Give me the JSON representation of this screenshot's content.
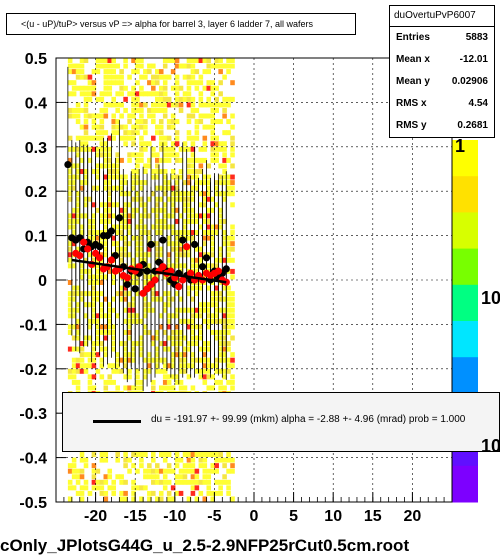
{
  "chart_data": {
    "type": "scatter",
    "title": "<(u - uP)/tuP> versus   vP => alpha for barrel 3, layer 6 ladder 7, all  wafers",
    "xlim": [
      -25,
      25
    ],
    "ylim": [
      -0.5,
      0.5
    ],
    "xticks": [
      "-20",
      "-15",
      "-10",
      "-5",
      "0",
      "5",
      "10",
      "15",
      "20"
    ],
    "yticks": [
      "0.5",
      "0.4",
      "0.3",
      "0.2",
      "0.1",
      "0",
      "-0.1",
      "-0.2",
      "-0.3",
      "-0.4",
      "-0.5"
    ],
    "series": [
      {
        "color": "#000000",
        "points": [
          [
            -23.5,
            0.26
          ],
          [
            -23.0,
            0.095
          ],
          [
            -22.5,
            0.09
          ],
          [
            -22.0,
            0.095
          ],
          [
            -21.5,
            0.07
          ],
          [
            -21.0,
            0.085
          ],
          [
            -20.5,
            0.075
          ],
          [
            -20.0,
            0.08
          ],
          [
            -19.5,
            0.075
          ],
          [
            -19.0,
            0.1
          ],
          [
            -18.5,
            0.1
          ],
          [
            -18.0,
            0.11
          ],
          [
            -17.5,
            0.055
          ],
          [
            -17.0,
            0.14
          ],
          [
            -16.5,
            0.03
          ],
          [
            -16.0,
            -0.01
          ],
          [
            -15.5,
            0.02
          ],
          [
            -15.0,
            -0.02
          ],
          [
            -14.5,
            0.015
          ],
          [
            -14.0,
            0.035
          ],
          [
            -13.5,
            0.02
          ],
          [
            -13.0,
            0.08
          ],
          [
            -12.5,
            0.02
          ],
          [
            -12.0,
            0.04
          ],
          [
            -11.5,
            0.09
          ],
          [
            -11.0,
            0.02
          ],
          [
            -10.5,
            0.0
          ],
          [
            -10.0,
            -0.01
          ],
          [
            -9.5,
            0.015
          ],
          [
            -9.0,
            0.09
          ],
          [
            -8.5,
            0.01
          ],
          [
            -8.0,
            0.0
          ],
          [
            -7.5,
            0.08
          ],
          [
            -7.0,
            0.01
          ],
          [
            -6.5,
            0.03
          ],
          [
            -6.0,
            0.05
          ],
          [
            -5.5,
            0.0
          ],
          [
            -5.0,
            0.02
          ],
          [
            -4.5,
            0.005
          ],
          [
            -4.0,
            0.015
          ],
          [
            -3.5,
            0.025
          ]
        ]
      },
      {
        "color": "#ff0000",
        "points": [
          [
            -22.5,
            0.06
          ],
          [
            -22.0,
            0.055
          ],
          [
            -21.5,
            0.085
          ],
          [
            -21.0,
            0.07
          ],
          [
            -20.5,
            0.035
          ],
          [
            -20.0,
            0.06
          ],
          [
            -19.5,
            0.05
          ],
          [
            -19.0,
            0.025
          ],
          [
            -18.5,
            0.03
          ],
          [
            -18.0,
            0.045
          ],
          [
            -17.5,
            0.02
          ],
          [
            -17.0,
            0.025
          ],
          [
            -16.5,
            0.01
          ],
          [
            -16.0,
            0.005
          ],
          [
            -15.5,
            0.025
          ],
          [
            -15.0,
            0.02
          ],
          [
            -14.5,
            0.03
          ],
          [
            -14.0,
            -0.03
          ],
          [
            -13.5,
            -0.02
          ],
          [
            -13.0,
            -0.01
          ],
          [
            -12.5,
            0.0
          ],
          [
            -12.0,
            0.02
          ],
          [
            -11.5,
            0.03
          ],
          [
            -11.0,
            0.015
          ],
          [
            -10.5,
            0.02
          ],
          [
            -10.0,
            0.005
          ],
          [
            -9.5,
            -0.015
          ],
          [
            -9.0,
            0.0
          ],
          [
            -8.5,
            0.075
          ],
          [
            -8.0,
            0.015
          ],
          [
            -7.5,
            0.0
          ],
          [
            -7.0,
            0.01
          ],
          [
            -6.5,
            0.0
          ],
          [
            -6.0,
            0.015
          ],
          [
            -5.5,
            0.01
          ],
          [
            -5.0,
            0.015
          ],
          [
            -4.5,
            0.02
          ],
          [
            -4.0,
            0.0
          ],
          [
            -3.5,
            -0.005
          ]
        ]
      }
    ],
    "fit_line": {
      "x": [
        -23,
        -3.5
      ],
      "y": [
        0.045,
        -0.005
      ]
    },
    "fit_label": "du = -191.97 +- 99.99 (mkm) alpha =   -2.88 +-  4.96 (mrad) prob = 1.000",
    "stats_title": "duOvertuPvP6007",
    "stats": [
      {
        "label": "Entries",
        "value": "5883"
      },
      {
        "label": "Mean x",
        "value": "-12.01"
      },
      {
        "label": "Mean y",
        "value": "0.02906"
      },
      {
        "label": "RMS x",
        "value": "4.54"
      },
      {
        "label": "RMS y",
        "value": "0.2681"
      }
    ],
    "colorbar_labels": [
      "1",
      "10",
      "10"
    ],
    "bottom_label": "cOnly_JPlotsG44G_u_2.5-2.9NFP25rCut0.5cm.root",
    "palette": [
      "#ffff33",
      "#f5e642",
      "#e6c84a",
      "#ff8a1e",
      "#ff2a1e"
    ],
    "colorbar_colors": [
      "#ffff00",
      "#ffe100",
      "#d7ff00",
      "#78ff00",
      "#00ff82",
      "#00e6ff",
      "#0090ff",
      "#2030ff",
      "#6010ff",
      "#7d00ff"
    ]
  }
}
